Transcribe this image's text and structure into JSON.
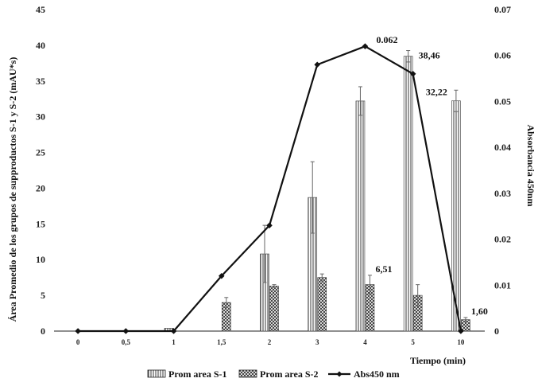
{
  "chart_data": {
    "type": "bar",
    "categories": [
      "0",
      "0,5",
      "1",
      "1,5",
      "2",
      "3",
      "4",
      "5",
      "10"
    ],
    "xlabel": "Tiempo (min)",
    "ylabel": "Área Promedio de los grupos de supproductos S-1 y S-2 (mAU*s)",
    "y2label": "Absorbancia 450nm",
    "ylim": [
      0,
      45
    ],
    "yticks": [
      "0",
      "5",
      "10",
      "15",
      "20",
      "25",
      "30",
      "35",
      "40",
      "45"
    ],
    "y2lim": [
      0,
      0.07
    ],
    "y2ticks": [
      "0",
      "0.01",
      "0.02",
      "0.03",
      "0.04",
      "0.05",
      "0.06",
      "0.07"
    ],
    "legend_position": "bottom",
    "grid": false,
    "series": [
      {
        "name": "Prom area S-1",
        "kind": "bar",
        "pattern": "vertical-lines",
        "values": [
          0,
          0,
          0.4,
          0,
          10.8,
          18.7,
          32.2,
          38.46,
          32.22
        ],
        "errors": [
          0,
          0,
          0,
          0,
          4.0,
          5.0,
          2.0,
          0.8,
          1.5
        ]
      },
      {
        "name": "Prom area S-2",
        "kind": "bar",
        "pattern": "crosshatch",
        "values": [
          0,
          0,
          0,
          4.0,
          6.3,
          7.5,
          6.51,
          5.0,
          1.6
        ],
        "errors": [
          0,
          0,
          0,
          0.7,
          0.2,
          0.5,
          1.3,
          1.5,
          0.3
        ]
      },
      {
        "name": "Abs450 nm",
        "kind": "line",
        "axis": "right",
        "values": [
          0,
          0,
          0,
          0.012,
          0.023,
          0.058,
          0.062,
          0.056,
          0
        ]
      }
    ],
    "annotations": [
      {
        "text": "0.062",
        "series": 2,
        "index": 6
      },
      {
        "text": "38,46",
        "series": 0,
        "index": 7
      },
      {
        "text": "32,22",
        "series": 0,
        "index": 8
      },
      {
        "text": "6,51",
        "series": 1,
        "index": 6
      },
      {
        "text": "1,60",
        "series": 1,
        "index": 8
      }
    ]
  }
}
